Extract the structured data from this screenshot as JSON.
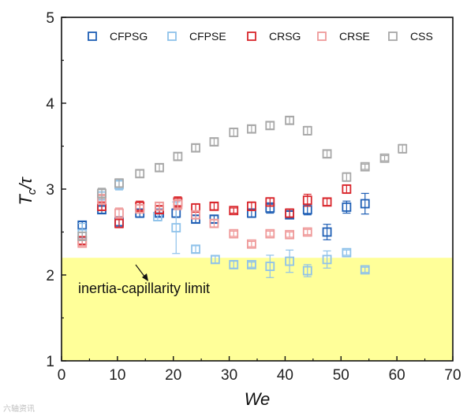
{
  "chart_data": {
    "type": "scatter",
    "xlabel": "We",
    "ylabel_main": "T",
    "ylabel_sub": "c",
    "ylabel_tail": "/τ",
    "xlim": [
      0,
      70
    ],
    "ylim": [
      1,
      5
    ],
    "x_ticks": [
      0,
      10,
      20,
      30,
      40,
      50,
      60,
      70
    ],
    "y_ticks": [
      1,
      2,
      3,
      4,
      5
    ],
    "grid": false,
    "legend_position": "top",
    "series": [
      {
        "name": "CFPSG",
        "color": "#1f5fb5",
        "points": [
          [
            3.7,
            2.58,
            0.04
          ],
          [
            7.2,
            2.76,
            0.04
          ],
          [
            10.3,
            2.62,
            0.06
          ],
          [
            14,
            2.72,
            0.05
          ],
          [
            17.5,
            2.72,
            0.04
          ],
          [
            20.5,
            2.72,
            0.05
          ],
          [
            24,
            2.65,
            0.04
          ],
          [
            27.3,
            2.65,
            0.04
          ],
          [
            34,
            2.72,
            0.05
          ],
          [
            37.3,
            2.78,
            0.06
          ],
          [
            40.8,
            2.7,
            0.04
          ],
          [
            44,
            2.76,
            0.06
          ],
          [
            47.5,
            2.5,
            0.09
          ],
          [
            51,
            2.79,
            0.07
          ],
          [
            54.3,
            2.83,
            0.12
          ]
        ]
      },
      {
        "name": "CFPSE",
        "color": "#8fc2ea",
        "points": [
          [
            3.7,
            2.48,
            0.12
          ],
          [
            7.2,
            2.92,
            0.08
          ],
          [
            10.3,
            3.05,
            0.06
          ],
          [
            17.2,
            2.68,
            0.05
          ],
          [
            20.5,
            2.55,
            0.3
          ],
          [
            24,
            2.3,
            0.04
          ],
          [
            27.5,
            2.18,
            0.04
          ],
          [
            30.8,
            2.12,
            0.04
          ],
          [
            34,
            2.12,
            0.03
          ],
          [
            37.3,
            2.1,
            0.13
          ],
          [
            40.8,
            2.16,
            0.13
          ],
          [
            44,
            2.05,
            0.07
          ],
          [
            47.5,
            2.18,
            0.1
          ],
          [
            51,
            2.26,
            0.03
          ],
          [
            54.3,
            2.06,
            0.03
          ]
        ]
      },
      {
        "name": "CRSG",
        "color": "#d9262c",
        "points": [
          [
            3.7,
            2.4,
            0.04
          ],
          [
            7.2,
            2.8,
            0.05
          ],
          [
            10.3,
            2.6,
            0.05
          ],
          [
            14,
            2.8,
            0.06
          ],
          [
            17.5,
            2.76,
            0.04
          ],
          [
            20.8,
            2.85,
            0.06
          ],
          [
            24,
            2.78,
            0.05
          ],
          [
            27.3,
            2.8,
            0.04
          ],
          [
            30.8,
            2.75,
            0.03
          ],
          [
            34,
            2.8,
            0.05
          ],
          [
            37.3,
            2.85,
            0.05
          ],
          [
            40.8,
            2.72,
            0.05
          ],
          [
            44,
            2.87,
            0.07
          ],
          [
            47.5,
            2.85,
            0.04
          ],
          [
            51,
            3.0,
            0.05
          ]
        ]
      },
      {
        "name": "CRSE",
        "color": "#ef9a9a",
        "points": [
          [
            3.7,
            2.37,
            0.03
          ],
          [
            7.2,
            2.88,
            0.06
          ],
          [
            10.3,
            2.72,
            0.06
          ],
          [
            14,
            2.77,
            0.05
          ],
          [
            17.5,
            2.8,
            0.04
          ],
          [
            20.8,
            2.82,
            0.06
          ],
          [
            24,
            2.7,
            0.04
          ],
          [
            27.3,
            2.6,
            0.04
          ],
          [
            30.8,
            2.48,
            0.03
          ],
          [
            34,
            2.36,
            0.03
          ],
          [
            37.3,
            2.48,
            0.03
          ],
          [
            40.8,
            2.47,
            0.03
          ],
          [
            44,
            2.5,
            0.03
          ]
        ]
      },
      {
        "name": "CSS",
        "color": "#a8a8a8",
        "points": [
          [
            3.7,
            2.45,
            0.05
          ],
          [
            7.2,
            2.95,
            0.06
          ],
          [
            10.3,
            3.07,
            0.05
          ],
          [
            14,
            3.18,
            0.04
          ],
          [
            17.5,
            3.25,
            0.04
          ],
          [
            20.8,
            3.38,
            0.04
          ],
          [
            24,
            3.48,
            0.04
          ],
          [
            27.3,
            3.55,
            0.04
          ],
          [
            30.8,
            3.66,
            0.05
          ],
          [
            34,
            3.7,
            0.04
          ],
          [
            37.3,
            3.74,
            0.04
          ],
          [
            40.8,
            3.8,
            0.04
          ],
          [
            44,
            3.68,
            0.05
          ],
          [
            47.5,
            3.41,
            0.04
          ],
          [
            51,
            3.14,
            0.05
          ],
          [
            54.3,
            3.26,
            0.03
          ],
          [
            57.8,
            3.36,
            0.03
          ],
          [
            61,
            3.47,
            0.05
          ]
        ]
      }
    ],
    "regions": [
      {
        "label": "inertia-capillarity limit",
        "color": "#ffff99",
        "y_from": 1,
        "y_to": 2.2
      }
    ]
  },
  "watermark": "六轴资讯"
}
